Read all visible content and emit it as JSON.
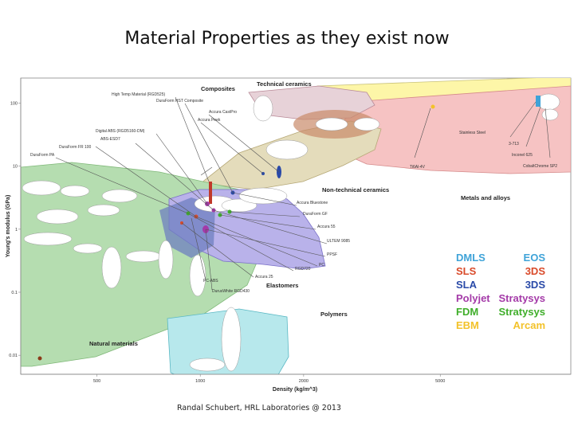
{
  "slide": {
    "title": "Material Properties as they exist now",
    "credit": "Randal Schubert, HRL Laboratories @ 2013"
  },
  "chart_data": {
    "type": "scatter",
    "xlabel": "Density (kg/m^3)",
    "ylabel": "Young's modulus (GPa)",
    "x_scale": "log",
    "y_scale": "log",
    "x_ticks": [
      "500",
      "1000",
      "2000",
      "5000"
    ],
    "y_ticks": [
      "100",
      "10",
      "1",
      "0.1",
      "0.01"
    ],
    "material_families": [
      {
        "label": "Technical ceramics",
        "color": "#fdf6a8"
      },
      {
        "label": "Composites",
        "color": "#e7d2d8"
      },
      {
        "label": "Metals and alloys",
        "color": "#f6c3c3"
      },
      {
        "label": "Non-technical ceramics",
        "color": "#e4dcbb"
      },
      {
        "label": "Polymers",
        "color": "#b9b2ea"
      },
      {
        "label": "Elastomers",
        "color": "#b7e8ec"
      },
      {
        "label": "Natural materials",
        "color": "#b5ddb0"
      }
    ],
    "point_labels": [
      "High Temp Material (RGD525)",
      "DuraForm HST Composite",
      "Accura CastPro",
      "Accura Bluestone",
      "Accura Peek",
      "Digital ABS (RGD5160-DM)",
      "ABS-ESD7",
      "DuraForm FR 100",
      "DuraForm PA",
      "Stainless Steel",
      "3-713",
      "Inconel 625",
      "Ti6Al-4V",
      "CobaltChrome SP2",
      "DuraForm GF",
      "Accura 55",
      "ULTEM 9085",
      "PPSF",
      "PC",
      "RGD720",
      "Accura 25",
      "PC-ABS",
      "DurusWhite RGD430"
    ],
    "legend": {
      "placement": "right",
      "entries": [
        {
          "process": "DMLS",
          "vendor": "EOS",
          "process_color": "#3fa3d8",
          "vendor_color": "#3fa3d8"
        },
        {
          "process": "SLS",
          "vendor": "3DS",
          "process_color": "#d94a2a",
          "vendor_color": "#d94a2a"
        },
        {
          "process": "SLA",
          "vendor": "3DS",
          "process_color": "#2a4aa8",
          "vendor_color": "#2a4aa8"
        },
        {
          "process": "Polyjet",
          "vendor": "Stratysys",
          "process_color": "#a43aa8",
          "vendor_color": "#a43aa8"
        },
        {
          "process": "FDM",
          "vendor": "Stratysys",
          "process_color": "#3fae2a",
          "vendor_color": "#3fae2a"
        },
        {
          "process": "EBM",
          "vendor": "Arcam",
          "process_color": "#f3c22a",
          "vendor_color": "#f3c22a"
        }
      ]
    }
  }
}
